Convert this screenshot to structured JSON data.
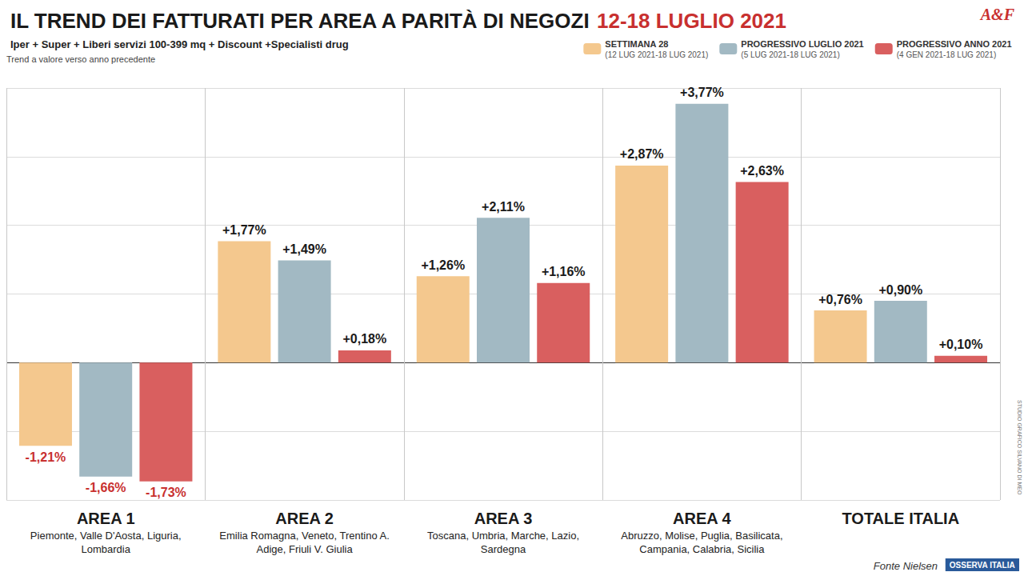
{
  "chart_data": {
    "type": "bar",
    "title": "IL TREND DEI FATTURATI PER AREA A PARITÀ DI NEGOZI",
    "title_highlight": "12-18 LUGLIO 2021",
    "subtitle": "Iper + Super + Liberi servizi 100-399 mq + Discount +Specialisti drug",
    "subtitle_note": "Trend a valore verso anno precedente",
    "categories": [
      "AREA 1",
      "AREA 2",
      "AREA 3",
      "AREA 4",
      "TOTALE ITALIA"
    ],
    "category_regions": [
      "Piemonte, Valle D'Aosta, Liguria, Lombardia",
      "Emilia Romagna, Veneto, Trentino A. Adige, Friuli V. Giulia",
      "Toscana, Umbria, Marche, Lazio, Sardegna",
      "Abruzzo, Molise, Puglia, Basilicata, Campania, Calabria, Sicilia",
      null
    ],
    "series": [
      {
        "name": "SETTIMANA 28",
        "period": "(12 LUG 2021-18 LUG 2021)",
        "color": "#f4c88e",
        "values": [
          -1.21,
          1.77,
          1.26,
          2.87,
          0.76
        ],
        "value_labels": [
          "-1,21%",
          "+1,77%",
          "+1,26%",
          "+2,87%",
          "+0,76%"
        ]
      },
      {
        "name": "PROGRESSIVO LUGLIO 2021",
        "period": "(5 LUG 2021-18 LUG 2021)",
        "color": "#a2b9c3",
        "values": [
          -1.66,
          1.49,
          2.11,
          3.77,
          0.9
        ],
        "value_labels": [
          "-1,66%",
          "+1,49%",
          "+2,11%",
          "+3,77%",
          "+0,90%"
        ]
      },
      {
        "name": "PROGRESSIVO ANNO 2021",
        "period": "(4 GEN 2021-18 LUG 2021)",
        "color": "#d95f5f",
        "values": [
          -1.73,
          0.18,
          1.16,
          2.63,
          0.1
        ],
        "value_labels": [
          "-1,73%",
          "+0,18%",
          "+1,16%",
          "+2,63%",
          "+0,10%"
        ]
      }
    ],
    "ylim": [
      -2,
      4
    ],
    "yticks": [
      -2,
      -1,
      0,
      1,
      2,
      3,
      4
    ],
    "grid": true,
    "legend": "top-right",
    "data_labels": true,
    "tick_labels": "x",
    "source": "Fonte Nielsen",
    "credit": "STUDIO GRAFICO SILVANO DI MEO",
    "logo": "OSSERVA ITALIA",
    "brand": "A&F"
  }
}
